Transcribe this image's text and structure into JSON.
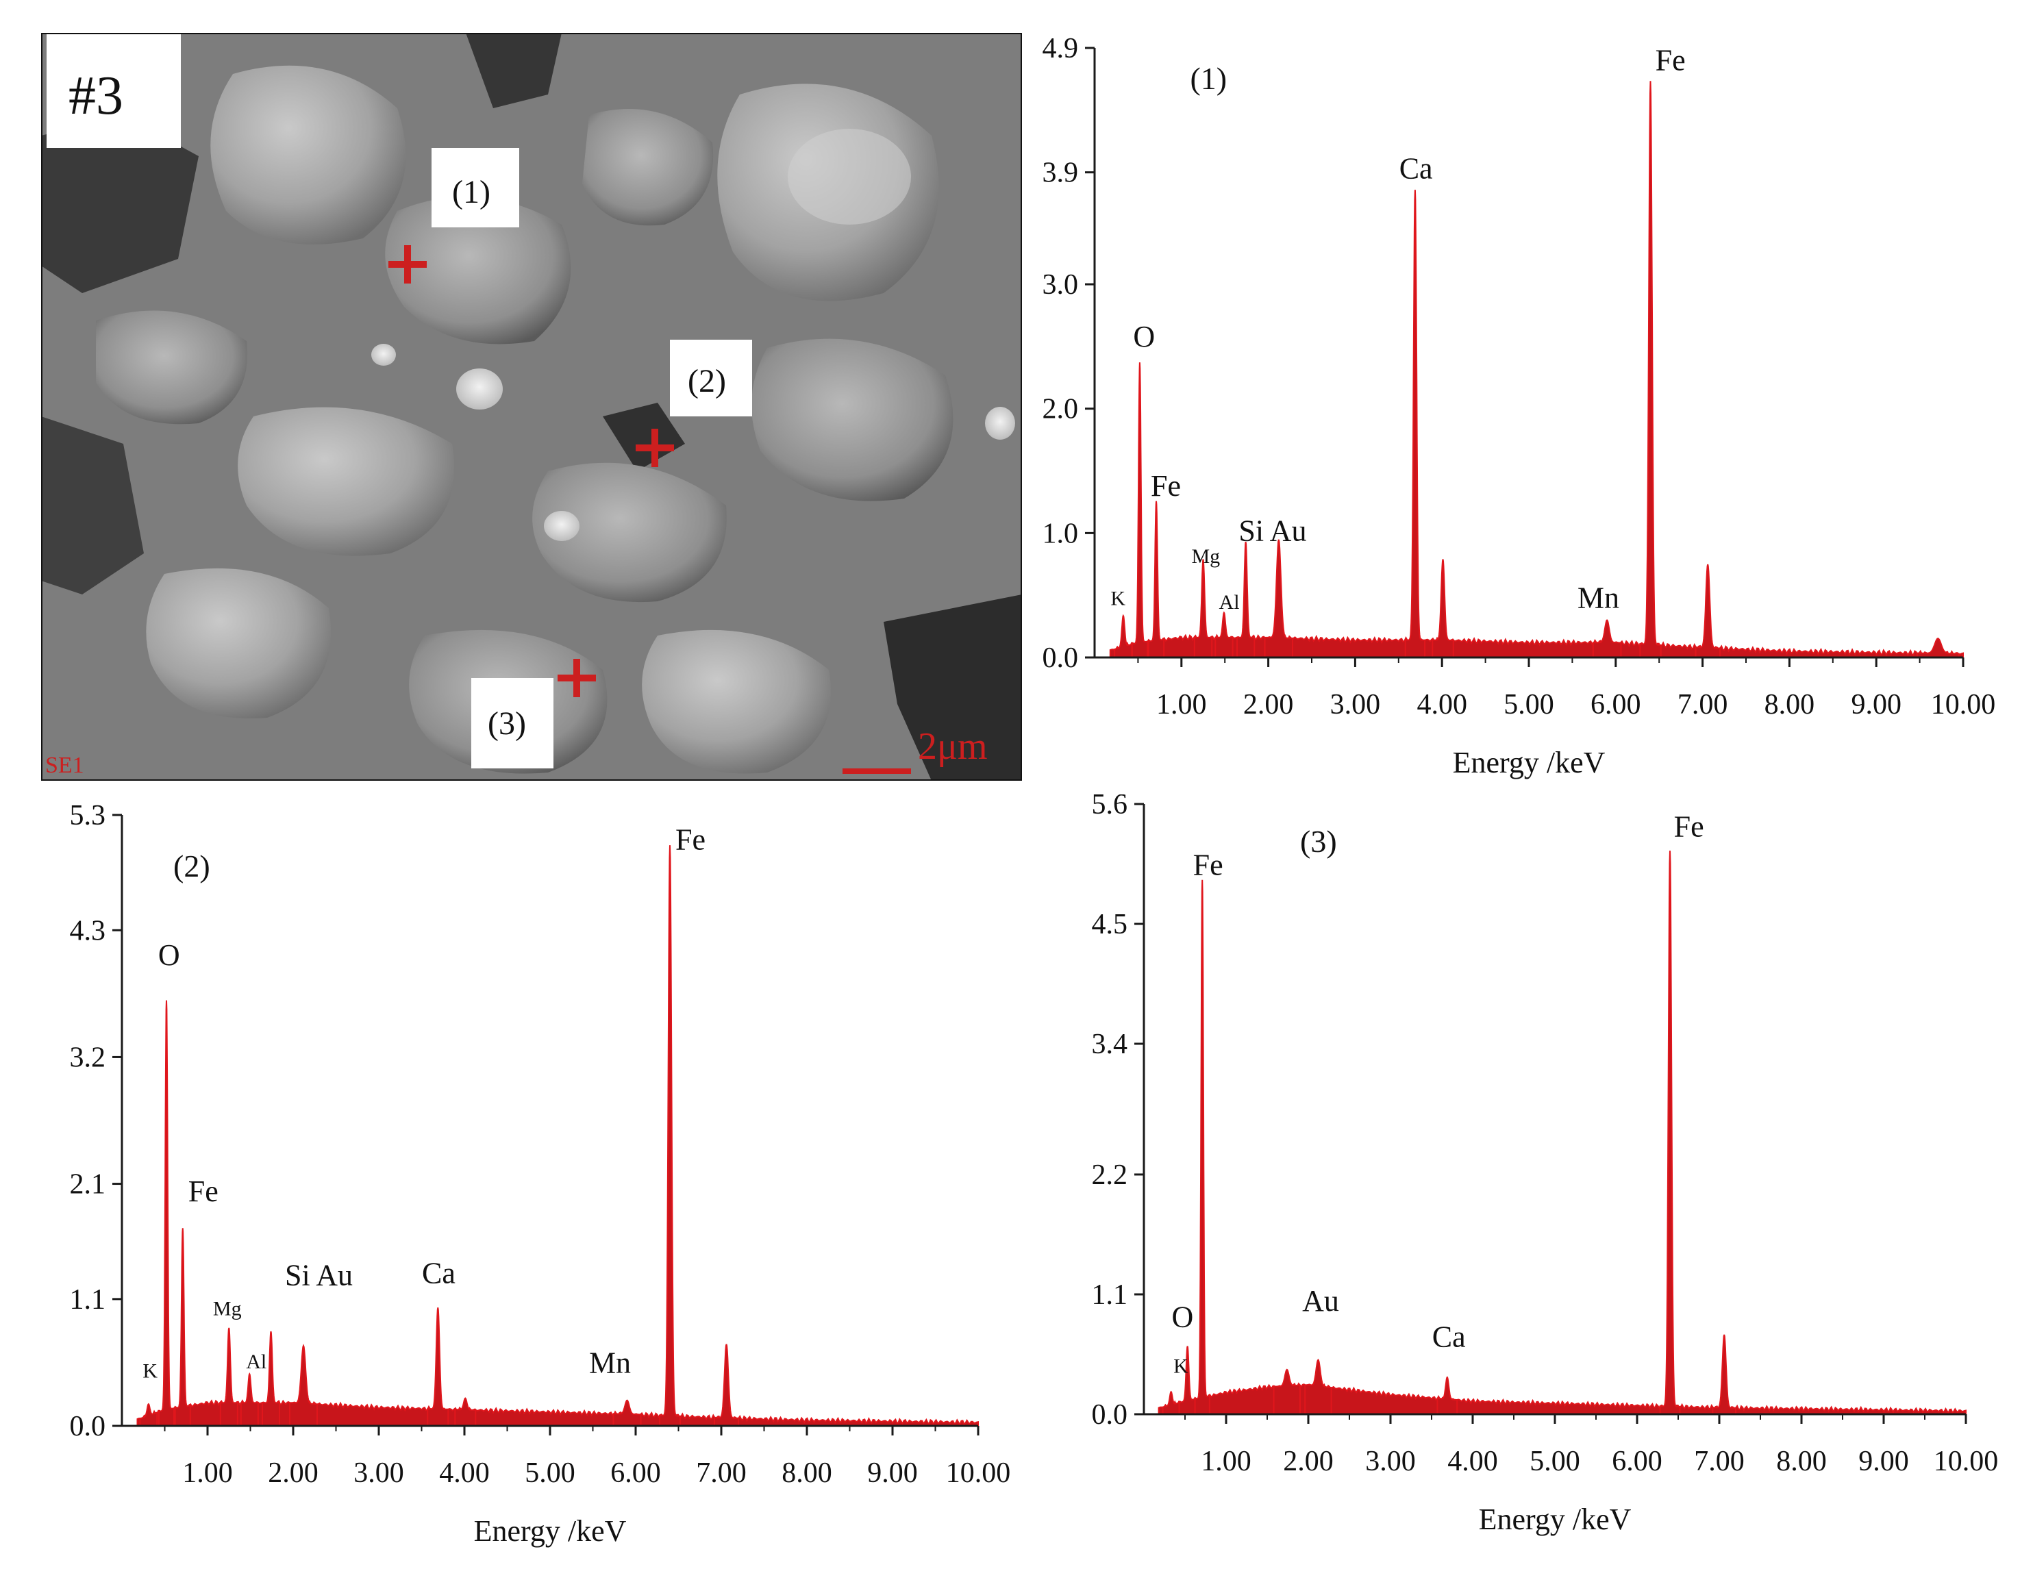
{
  "sem_image": {
    "sample_label": "#3",
    "detector_label": "SE1",
    "scale_bar_label": "2μm",
    "point_labels": [
      "(1)",
      "(2)",
      "(3)"
    ],
    "marker_color": "#cc1f1f",
    "background_gray": "#8c8c8c"
  },
  "colors": {
    "spectrum_fill": "#c8151b",
    "spectrum_stroke": "#e0161c",
    "axis": "#1a1a1a"
  },
  "chart_data": [
    {
      "type": "area",
      "title": "(1)",
      "xlabel": "Energy /keV",
      "ylabel": "",
      "xlim": [
        0,
        10.0
      ],
      "ylim": [
        0,
        4.9
      ],
      "yticks": [
        0.0,
        1.0,
        2.0,
        3.0,
        3.9,
        4.9
      ],
      "ytick_labels": [
        "0.0",
        "1.0",
        "2.0",
        "3.0",
        "3.9",
        "4.9"
      ],
      "xticks": [
        1,
        2,
        3,
        4,
        5,
        6,
        7,
        8,
        9,
        10
      ],
      "xtick_labels": [
        "1.00",
        "2.00",
        "3.00",
        "4.00",
        "5.00",
        "6.00",
        "7.00",
        "8.00",
        "9.00",
        "10.00"
      ],
      "baseline": [
        [
          0.2,
          0.06
        ],
        [
          0.5,
          0.12
        ],
        [
          1.0,
          0.16
        ],
        [
          2.0,
          0.16
        ],
        [
          3.0,
          0.14
        ],
        [
          4.0,
          0.14
        ],
        [
          5.0,
          0.12
        ],
        [
          6.0,
          0.12
        ],
        [
          7.0,
          0.08
        ],
        [
          8.0,
          0.05
        ],
        [
          9.0,
          0.04
        ],
        [
          10.0,
          0.03
        ]
      ],
      "peaks": [
        {
          "element": "K",
          "energy": 0.33,
          "height": 0.25,
          "width": 0.025
        },
        {
          "element": "O",
          "energy": 0.52,
          "height": 2.25,
          "width": 0.022
        },
        {
          "element": "Fe",
          "energy": 0.71,
          "height": 1.12,
          "width": 0.022
        },
        {
          "element": "Mg",
          "energy": 1.25,
          "height": 0.63,
          "width": 0.025
        },
        {
          "element": "Al",
          "energy": 1.49,
          "height": 0.2,
          "width": 0.025
        },
        {
          "element": "Si",
          "energy": 1.74,
          "height": 0.77,
          "width": 0.025
        },
        {
          "element": "Au",
          "energy": 2.12,
          "height": 0.79,
          "width": 0.04
        },
        {
          "element": "Ca",
          "energy": 3.69,
          "height": 3.62,
          "width": 0.028
        },
        {
          "element": "Ca",
          "energy": 4.01,
          "height": 0.65,
          "width": 0.03
        },
        {
          "element": "Mn",
          "energy": 5.9,
          "height": 0.18,
          "width": 0.04
        },
        {
          "element": "Fe",
          "energy": 6.4,
          "height": 4.53,
          "width": 0.03
        },
        {
          "element": "Fe",
          "energy": 7.06,
          "height": 0.67,
          "width": 0.035
        },
        {
          "element": "",
          "energy": 9.71,
          "height": 0.12,
          "width": 0.06
        }
      ],
      "labels": [
        {
          "text": "O",
          "x": 0.57,
          "y": 2.5,
          "size": "large"
        },
        {
          "text": "Fe",
          "x": 0.82,
          "y": 1.3,
          "size": "large"
        },
        {
          "text": "K",
          "x": 0.27,
          "y": 0.42,
          "size": "small"
        },
        {
          "text": "Mg",
          "x": 1.28,
          "y": 0.76,
          "size": "small"
        },
        {
          "text": "Al",
          "x": 1.55,
          "y": 0.39,
          "size": "small"
        },
        {
          "text": "Si Au",
          "x": 2.05,
          "y": 0.94,
          "size": "large"
        },
        {
          "text": "Ca",
          "x": 3.7,
          "y": 3.85,
          "size": "large"
        },
        {
          "text": "Mn",
          "x": 5.8,
          "y": 0.4,
          "size": "large"
        },
        {
          "text": "Fe",
          "x": 6.63,
          "y": 4.72,
          "size": "large"
        }
      ]
    },
    {
      "type": "area",
      "title": "(2)",
      "xlabel": "Energy /keV",
      "ylabel": "",
      "xlim": [
        0,
        10.0
      ],
      "ylim": [
        0,
        5.3
      ],
      "yticks": [
        0.0,
        1.1,
        2.1,
        3.2,
        4.3,
        5.3
      ],
      "ytick_labels": [
        "0.0",
        "1.1",
        "2.1",
        "3.2",
        "4.3",
        "5.3"
      ],
      "xticks": [
        1,
        2,
        3,
        4,
        5,
        6,
        7,
        8,
        9,
        10
      ],
      "xtick_labels": [
        "1.00",
        "2.00",
        "3.00",
        "4.00",
        "5.00",
        "6.00",
        "7.00",
        "8.00",
        "9.00",
        "10.00"
      ],
      "baseline": [
        [
          0.2,
          0.06
        ],
        [
          0.5,
          0.14
        ],
        [
          1.0,
          0.2
        ],
        [
          2.0,
          0.2
        ],
        [
          3.0,
          0.16
        ],
        [
          4.0,
          0.14
        ],
        [
          5.0,
          0.12
        ],
        [
          6.0,
          0.1
        ],
        [
          7.0,
          0.07
        ],
        [
          8.0,
          0.05
        ],
        [
          9.0,
          0.04
        ],
        [
          10.0,
          0.03
        ]
      ],
      "peaks": [
        {
          "element": "K",
          "energy": 0.31,
          "height": 0.1,
          "width": 0.025
        },
        {
          "element": "O",
          "energy": 0.52,
          "height": 3.55,
          "width": 0.022
        },
        {
          "element": "Fe",
          "energy": 0.71,
          "height": 1.55,
          "width": 0.022
        },
        {
          "element": "Mg",
          "energy": 1.25,
          "height": 0.65,
          "width": 0.025
        },
        {
          "element": "Al",
          "energy": 1.49,
          "height": 0.25,
          "width": 0.025
        },
        {
          "element": "Si",
          "energy": 1.74,
          "height": 0.62,
          "width": 0.025
        },
        {
          "element": "Au",
          "energy": 2.12,
          "height": 0.5,
          "width": 0.04
        },
        {
          "element": "Ca",
          "energy": 3.69,
          "height": 0.88,
          "width": 0.03
        },
        {
          "element": "Ca",
          "energy": 4.01,
          "height": 0.1,
          "width": 0.03
        },
        {
          "element": "Mn",
          "energy": 5.9,
          "height": 0.12,
          "width": 0.04
        },
        {
          "element": "Fe",
          "energy": 6.4,
          "height": 4.95,
          "width": 0.03
        },
        {
          "element": "Fe",
          "energy": 7.06,
          "height": 0.64,
          "width": 0.035
        }
      ],
      "labels": [
        {
          "text": "O",
          "x": 0.55,
          "y": 4.0,
          "size": "large"
        },
        {
          "text": "Fe",
          "x": 0.95,
          "y": 1.95,
          "size": "large"
        },
        {
          "text": "K",
          "x": 0.33,
          "y": 0.42,
          "size": "small"
        },
        {
          "text": "Mg",
          "x": 1.23,
          "y": 0.96,
          "size": "small"
        },
        {
          "text": "Al",
          "x": 1.57,
          "y": 0.5,
          "size": "small"
        },
        {
          "text": "Si Au",
          "x": 2.3,
          "y": 1.22,
          "size": "large"
        },
        {
          "text": "Ca",
          "x": 3.7,
          "y": 1.24,
          "size": "large"
        },
        {
          "text": "Mn",
          "x": 5.7,
          "y": 0.46,
          "size": "large"
        },
        {
          "text": "Fe",
          "x": 6.64,
          "y": 5.0,
          "size": "large"
        }
      ]
    },
    {
      "type": "area",
      "title": "(3)",
      "xlabel": "Energy /keV",
      "ylabel": "",
      "xlim": [
        0,
        10.0
      ],
      "ylim": [
        0,
        5.6
      ],
      "yticks": [
        0.0,
        1.1,
        2.2,
        3.4,
        4.5,
        5.6
      ],
      "ytick_labels": [
        "0.0",
        "1.1",
        "2.2",
        "3.4",
        "4.5",
        "5.6"
      ],
      "xticks": [
        1,
        2,
        3,
        4,
        5,
        6,
        7,
        8,
        9,
        10
      ],
      "xtick_labels": [
        "1.00",
        "2.00",
        "3.00",
        "4.00",
        "5.00",
        "6.00",
        "7.00",
        "8.00",
        "9.00",
        "10.00"
      ],
      "baseline": [
        [
          0.2,
          0.06
        ],
        [
          0.5,
          0.12
        ],
        [
          1.0,
          0.2
        ],
        [
          1.5,
          0.25
        ],
        [
          2.0,
          0.27
        ],
        [
          3.0,
          0.18
        ],
        [
          4.0,
          0.12
        ],
        [
          5.0,
          0.1
        ],
        [
          6.0,
          0.08
        ],
        [
          7.0,
          0.06
        ],
        [
          8.0,
          0.05
        ],
        [
          9.0,
          0.04
        ],
        [
          10.0,
          0.03
        ]
      ],
      "peaks": [
        {
          "element": "K",
          "energy": 0.33,
          "height": 0.12,
          "width": 0.025
        },
        {
          "element": "O",
          "energy": 0.53,
          "height": 0.5,
          "width": 0.025
        },
        {
          "element": "Fe",
          "energy": 0.71,
          "height": 4.75,
          "width": 0.022
        },
        {
          "element": "",
          "energy": 1.74,
          "height": 0.15,
          "width": 0.04
        },
        {
          "element": "Au",
          "energy": 2.12,
          "height": 0.24,
          "width": 0.04
        },
        {
          "element": "Ca",
          "energy": 3.69,
          "height": 0.2,
          "width": 0.03
        },
        {
          "element": "Fe",
          "energy": 6.4,
          "height": 5.1,
          "width": 0.03
        },
        {
          "element": "Fe",
          "energy": 7.06,
          "height": 0.67,
          "width": 0.035
        }
      ],
      "labels": [
        {
          "text": "Fe",
          "x": 0.78,
          "y": 4.95,
          "size": "large"
        },
        {
          "text": "O",
          "x": 0.47,
          "y": 0.8,
          "size": "large"
        },
        {
          "text": "K",
          "x": 0.45,
          "y": 0.38,
          "size": "small"
        },
        {
          "text": "Au",
          "x": 2.15,
          "y": 0.95,
          "size": "large"
        },
        {
          "text": "Ca",
          "x": 3.71,
          "y": 0.62,
          "size": "large"
        },
        {
          "text": "Fe",
          "x": 6.63,
          "y": 5.3,
          "size": "large"
        }
      ]
    }
  ]
}
